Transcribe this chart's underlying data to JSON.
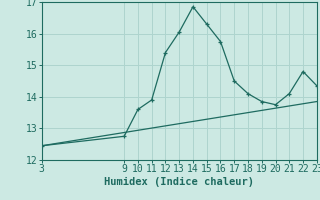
{
  "title": "",
  "xlabel": "Humidex (Indice chaleur)",
  "ylabel": "",
  "background_color": "#cce9e3",
  "line_color": "#1e6b60",
  "grid_color": "#aed4ce",
  "x_data": [
    3,
    9,
    10,
    11,
    12,
    13,
    14,
    15,
    16,
    17,
    18,
    19,
    20,
    21,
    22,
    23
  ],
  "y_data": [
    12.45,
    12.75,
    13.6,
    13.9,
    15.4,
    16.05,
    16.85,
    16.3,
    15.75,
    14.5,
    14.1,
    13.85,
    13.75,
    14.1,
    14.8,
    14.35
  ],
  "trend_x": [
    3,
    23
  ],
  "trend_y": [
    12.45,
    13.85
  ],
  "ylim": [
    12.0,
    17.0
  ],
  "xlim": [
    3,
    23
  ],
  "yticks": [
    12,
    13,
    14,
    15,
    16,
    17
  ],
  "xticks": [
    3,
    9,
    10,
    11,
    12,
    13,
    14,
    15,
    16,
    17,
    18,
    19,
    20,
    21,
    22,
    23
  ],
  "tick_fontsize": 7.0,
  "xlabel_fontsize": 7.5
}
